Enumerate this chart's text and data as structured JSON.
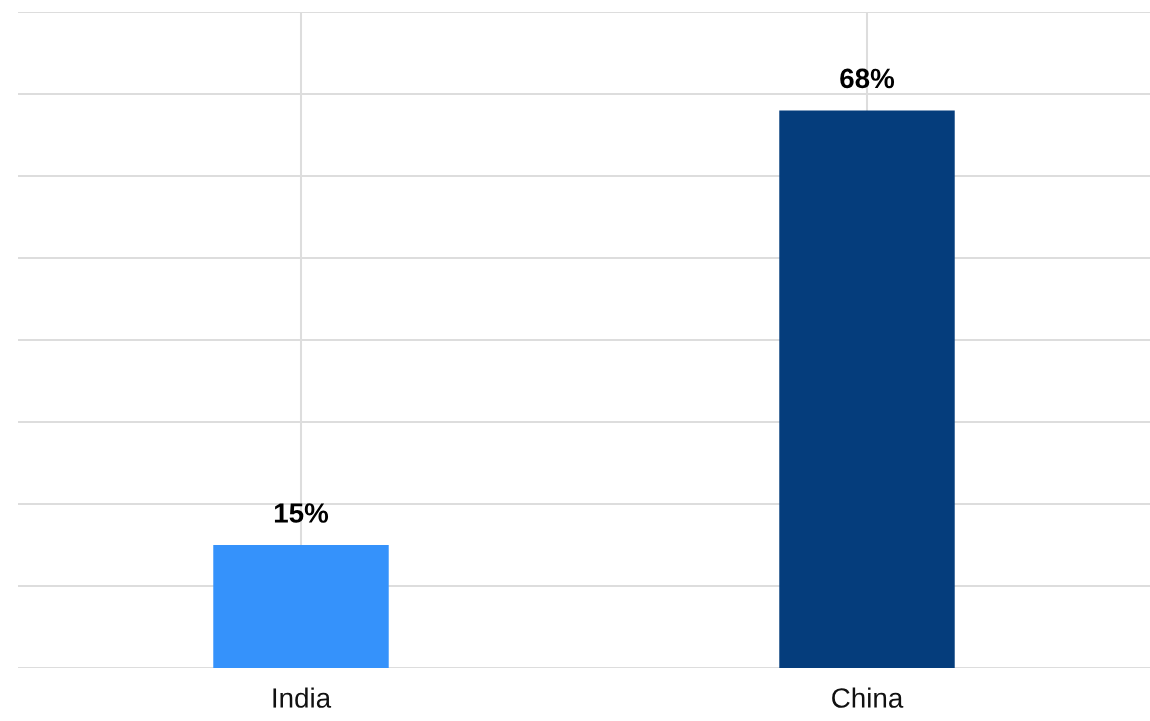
{
  "chart_data": {
    "type": "bar",
    "categories": [
      "India",
      "China"
    ],
    "values": [
      15,
      68
    ],
    "colors": [
      "#3592fb",
      "#053d7c"
    ],
    "value_labels": [
      "15%",
      "68%"
    ],
    "ylim": [
      0,
      80
    ],
    "yticks": [
      {
        "value": 0,
        "label": null
      },
      {
        "value": 10,
        "label": null
      },
      {
        "value": 20,
        "label": null
      },
      {
        "value": 30,
        "label": null
      },
      {
        "value": 40,
        "label": null
      },
      {
        "value": 50,
        "label": null
      },
      {
        "value": 60,
        "label": null
      },
      {
        "value": 70,
        "label": null
      },
      {
        "value": 80,
        "label": null
      }
    ],
    "tick_labels": "x",
    "grid": true,
    "legend": false
  }
}
